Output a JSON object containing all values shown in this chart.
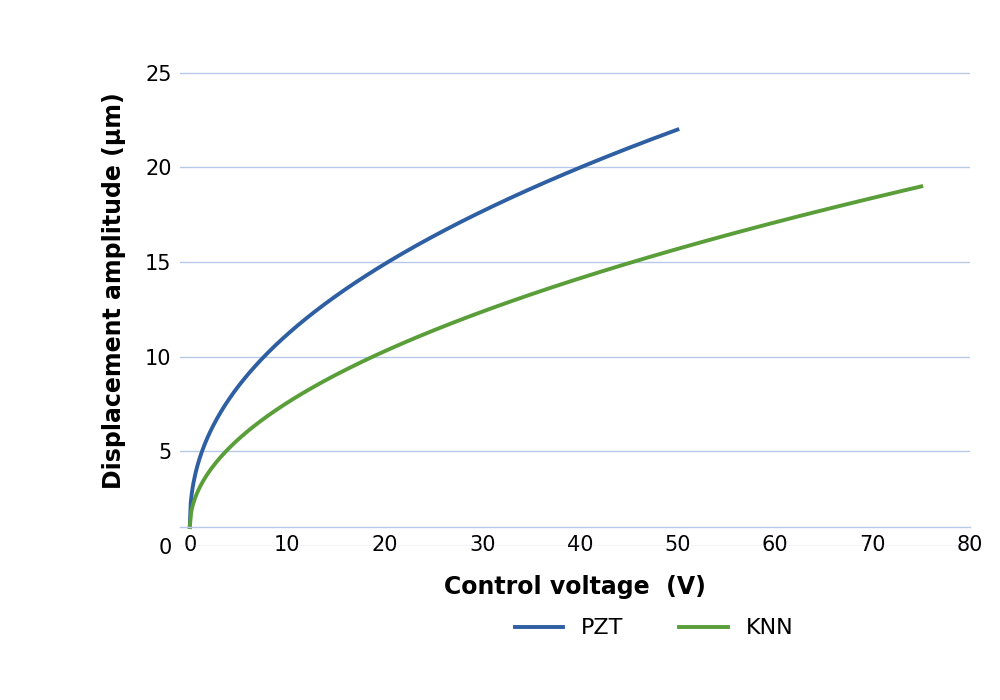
{
  "xlabel": "Control voltage  (V)",
  "ylabel": "Displacement amplitude (µm)",
  "xlim": [
    -1,
    80
  ],
  "ylim": [
    0,
    27
  ],
  "xticks": [
    0,
    10,
    20,
    30,
    40,
    50,
    60,
    70,
    80
  ],
  "yticks": [
    0,
    5,
    10,
    15,
    20,
    25
  ],
  "pzt_color": "#2e5fa3",
  "knn_color": "#5a9e3a",
  "pzt_label": "PZT",
  "knn_label": "KNN",
  "grid_color": "#b8c8e8",
  "background_color": "#ffffff",
  "xlabel_fontsize": 17,
  "ylabel_fontsize": 17,
  "tick_fontsize": 15,
  "legend_fontsize": 16,
  "line_width": 2.8,
  "pzt_x_end": 50,
  "knn_x_end": 75,
  "pzt_start_y": 1.0,
  "knn_start_y": 1.0,
  "pzt_end_y": 22.0,
  "knn_end_y": 19.0,
  "spine_bottom_y": 1.0
}
